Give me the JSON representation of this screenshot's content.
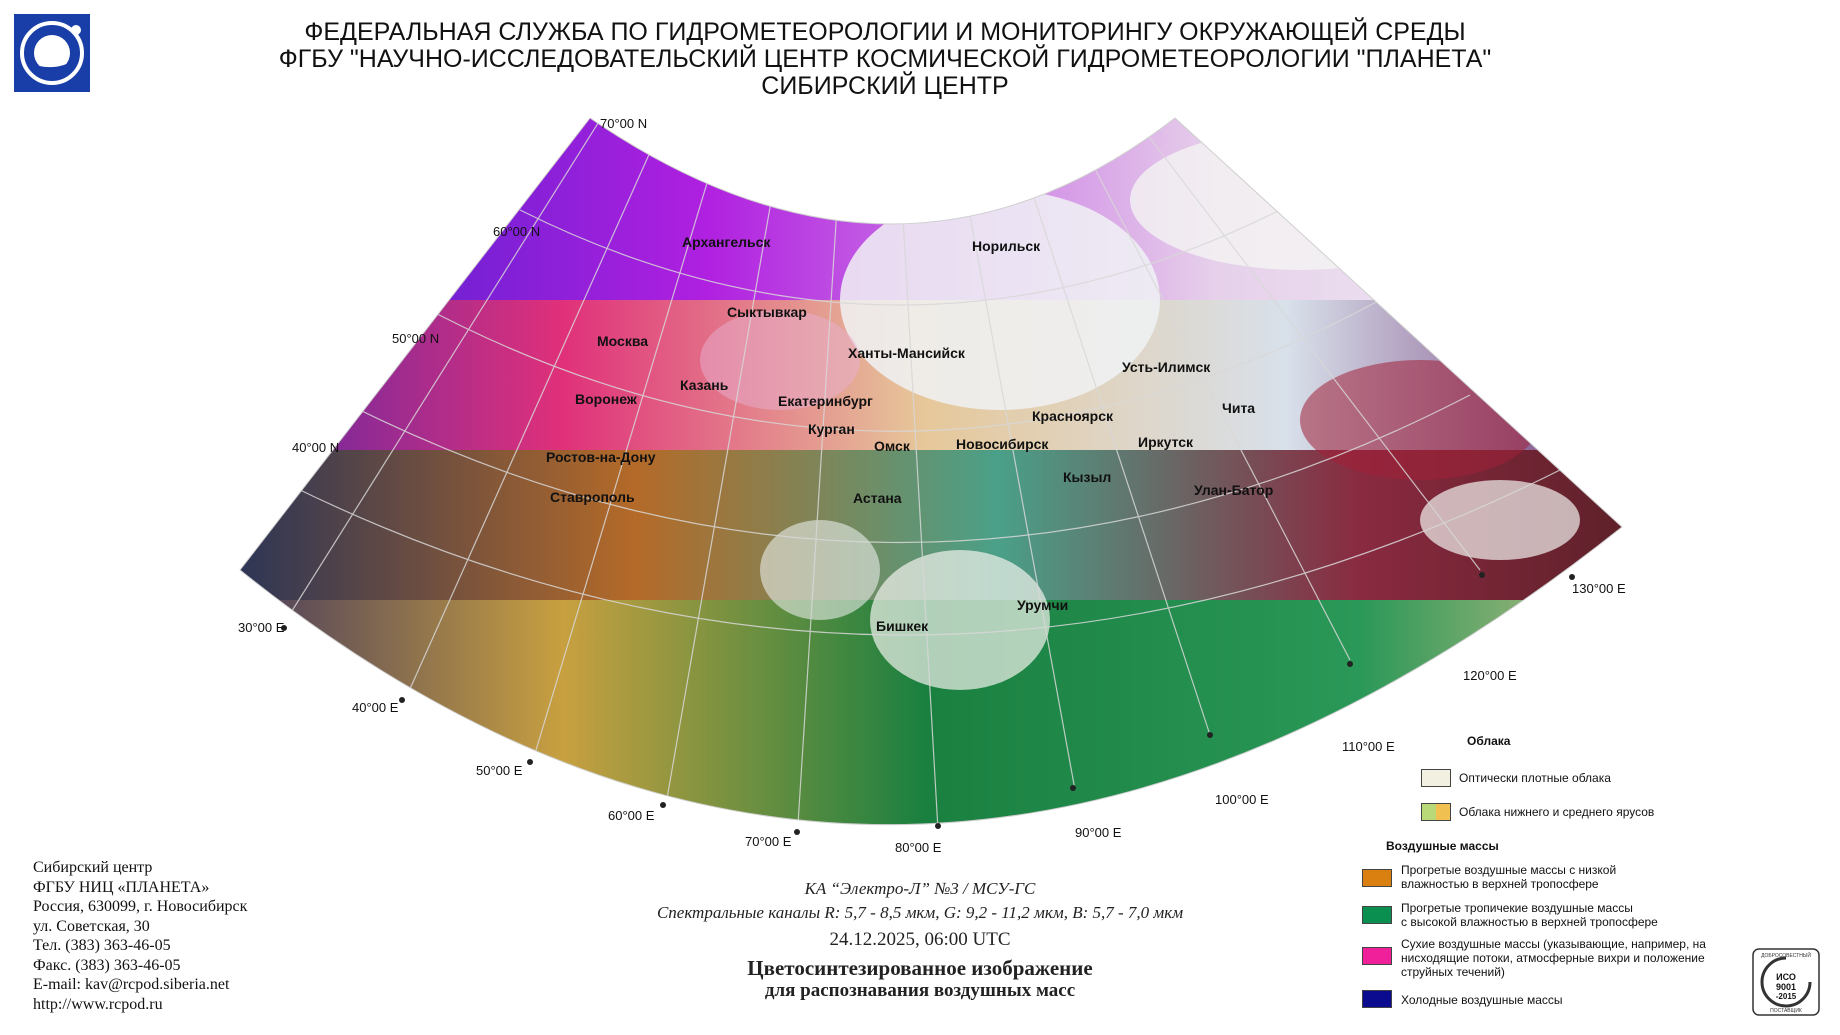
{
  "header": {
    "line1": "ФЕДЕРАЛЬНАЯ СЛУЖБА ПО ГИДРОМЕТЕОРОЛОГИИ И МОНИТОРИНГУ ОКРУЖАЮЩЕЙ СРЕДЫ",
    "line2": "ФГБУ \"НАУЧНО-ИССЛЕДОВАТЕЛЬСКИЙ ЦЕНТР КОСМИЧЕСКОЙ ГИДРОМЕТЕОРОЛОГИИ \"ПЛАНЕТА\"",
    "line3": "СИБИРСКИЙ ЦЕНТР"
  },
  "map": {
    "lat_labels": [
      "70°00 N",
      "60°00 N",
      "50°00 N",
      "40°00 N"
    ],
    "lon_labels": [
      "30°00 E",
      "40°00 E",
      "50°00 E",
      "60°00 E",
      "70°00 E",
      "80°00 E",
      "90°00 E",
      "100°00 E",
      "110°00 E",
      "120°00 E",
      "130°00 E"
    ],
    "cities": [
      "Архангельск",
      "Норильск",
      "Сыктывкар",
      "Москва",
      "Ханты-Мансийск",
      "Усть-Илимск",
      "Казань",
      "Воронеж",
      "Екатеринбург",
      "Красноярск",
      "Чита",
      "Курган",
      "Омск",
      "Новосибирск",
      "Иркутск",
      "Ростов-на-Дону",
      "Кызыл",
      "Улан-Батор",
      "Ставрополь",
      "Астана",
      "Урумчи",
      "Бишкек"
    ]
  },
  "address": {
    "l1": "Сибирский центр",
    "l2": "ФГБУ НИЦ «ПЛАНЕТА»",
    "l3": "Россия, 630099, г. Новосибирск",
    "l4": "ул. Советская, 30",
    "l5": "Тел. (383) 363-46-05",
    "l6": "Факс. (383) 363-46-05",
    "l7": "E-mail: kav@rcpod.siberia.net",
    "l8": "http://www.rcpod.ru"
  },
  "meta": {
    "satellite": "КА “Электро-Л” №3 / МСУ-ГС",
    "channels": "Спектральные каналы R: 5,7 - 8,5 мкм, G: 9,2 - 11,2 мкм, B: 5,7 - 7,0 мкм",
    "datetime": "24.12.2025, 06:00 UTC",
    "title1": "Цветосинтезированное изображение",
    "title2": "для распознавания воздушных масс"
  },
  "legend": {
    "clouds_title": "Облака",
    "clouds": [
      {
        "label": "Оптически плотные облака",
        "color": "#f2f0e0"
      },
      {
        "label": "Облака нижнего и среднего ярусов",
        "color": "#b9d878",
        "color2": "#f0c050"
      }
    ],
    "air_title": "Воздушные массы",
    "air": [
      {
        "label1": "Прогретые воздушные массы с низкой",
        "label2": "влажностью в верхней тропосфере",
        "label3": "",
        "color": "#d98010"
      },
      {
        "label1": "Прогретые тропичекие воздушные массы",
        "label2": "с высокой влажностью в верхней тропосфере",
        "label3": "",
        "color": "#0a8f50"
      },
      {
        "label1": "Сухие воздушные массы (указывающие, например, на",
        "label2": "нисходящие потоки, атмосферные вихри и положение",
        "label3": "струйных течений)",
        "color": "#f0209a"
      },
      {
        "label1": "Холодные воздушные массы",
        "label2": "",
        "label3": "",
        "color": "#0b0b90"
      }
    ]
  },
  "iso": {
    "top": "ДОБРОСОВЕСТНЫЙ",
    "mid1": "ИСО",
    "mid2": "9001",
    "mid3": "-2015",
    "bottom": "ПОСТАВЩИК"
  }
}
